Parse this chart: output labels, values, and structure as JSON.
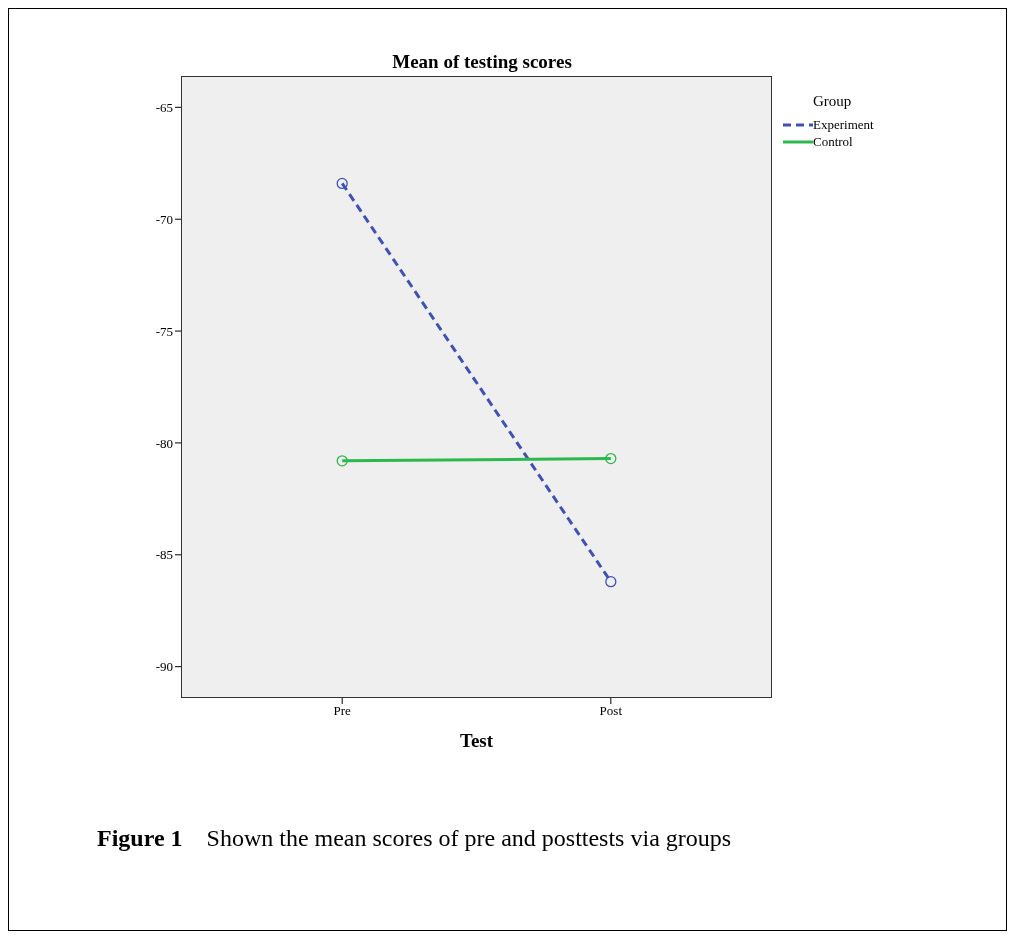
{
  "chart_data": {
    "type": "line",
    "title": "Mean of testing scores",
    "xlabel": "Test",
    "legend_title": "Group",
    "categories": [
      "Pre",
      "Post"
    ],
    "series": [
      {
        "name": "Experiment",
        "color": "#3f51b5",
        "values": [
          -68.4,
          -86.2
        ],
        "line_style": "dashed"
      },
      {
        "name": "Control",
        "color": "#2db84d",
        "values": [
          -80.8,
          -80.7
        ],
        "line_style": "solid"
      }
    ],
    "ylim": [
      -91.4,
      -63.6
    ],
    "yticks": [
      -65,
      -70,
      -75,
      -80,
      -85,
      -90
    ],
    "grid": false,
    "legend": "top right",
    "marker": "circle",
    "annotations": [
      "Figure 1    Shown the mean scores of pre and posttests via groups"
    ]
  }
}
